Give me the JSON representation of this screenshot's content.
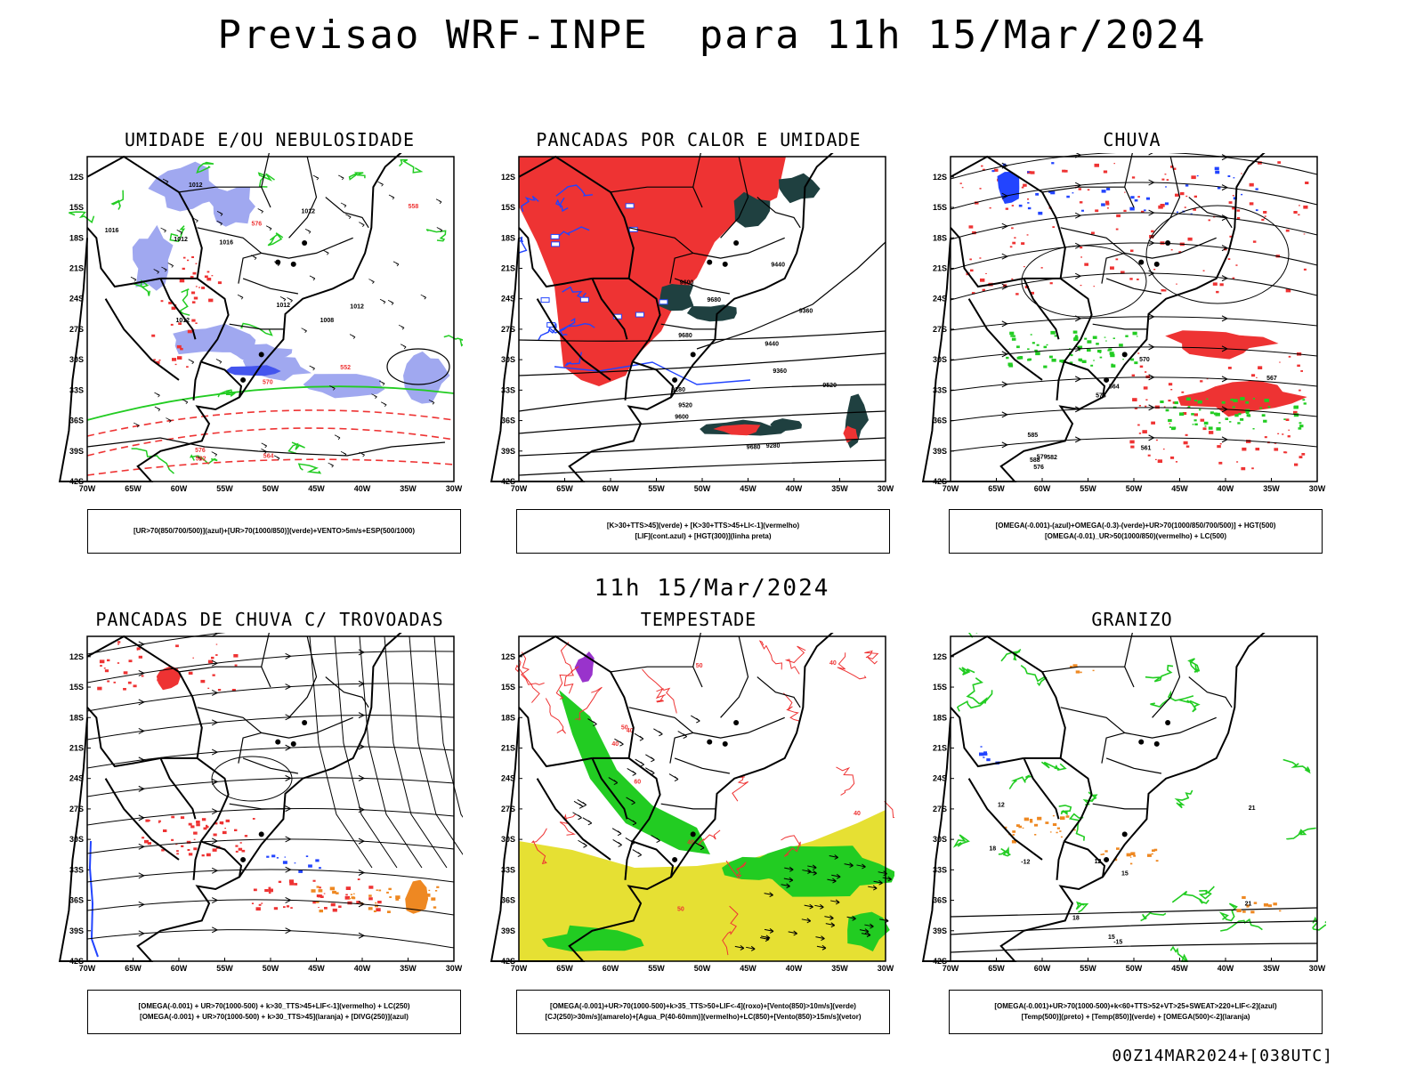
{
  "header": {
    "title": "Previsao WRF-INPE  para 11h 15/Mar/2024"
  },
  "mid_title": "11h 15/Mar/2024",
  "footer": "00Z14MAR2024+[038UTC]",
  "axes": {
    "lat_labels": [
      "12S",
      "15S",
      "18S",
      "21S",
      "24S",
      "27S",
      "30S",
      "33S",
      "36S",
      "39S",
      "42S"
    ],
    "lon_labels": [
      "70W",
      "65W",
      "60W",
      "55W",
      "50W",
      "45W",
      "40W",
      "35W",
      "30W"
    ]
  },
  "colors": {
    "humidity_blue": "#a0a8f0",
    "green": "#22cc22",
    "red": "#ee3333",
    "dark_teal": "#1f4040",
    "blue": "#2244ff",
    "orange": "#ee8822",
    "yellow": "#e6e033",
    "purple": "#9933cc",
    "black": "#000000"
  },
  "panels": [
    {
      "title": "UMIDADE E/OU NEBULOSIDADE",
      "legend": [
        "[UR>70(850/700/500)](azul)+[UR>70(1000/850)](verde)+VENTO>5m/s+ESP(500/1000)"
      ],
      "contour_labels": [
        "1012",
        "1012",
        "1012",
        "1012",
        "1008",
        "1012",
        "1016",
        "1012",
        "1016",
        "576",
        "576",
        "570",
        "582",
        "564",
        "558",
        "552"
      ]
    },
    {
      "title": "PANCADAS POR CALOR E UMIDADE",
      "legend": [
        "[K>30+TTS>45](verde) + [K>30+TTS>45+LI<-1](vermelho)",
        "[LIF](cont.azul) + [HGT(300)](linha preta)"
      ],
      "contour_labels": [
        "9680",
        "9680",
        "9680",
        "9600",
        "9600",
        "9520",
        "9520",
        "9440",
        "9440",
        "9360",
        "9360",
        "9280",
        "9280"
      ]
    },
    {
      "title": "CHUVA",
      "legend": [
        "[OMEGA(-0.001)-(azul)+OMEGA(-0.3)-(verde)+UR>70(1000/850/700/500)] + HGT(500)",
        "[OMEGA(-0.01)_UR>50(1000/850)(vermelho) + LC(500)"
      ],
      "contour_labels": [
        "588",
        "585",
        "582",
        "579",
        "576",
        "573",
        "570",
        "567",
        "564",
        "561"
      ]
    },
    {
      "title": "PANCADAS DE CHUVA C/ TROVOADAS",
      "legend": [
        "[OMEGA(-0.001) + UR>70(1000-500) + k>30_TTS>45+LIF<-1](vermelho) + LC(250)",
        "[OMEGA(-0.001) + UR>70(1000-500) + k>30_TTS>45](laranja) + [DIVG(250)](azul)"
      ],
      "contour_labels": []
    },
    {
      "title": "TEMPESTADE",
      "legend": [
        "[OMEGA(-0.001)+UR>70(1000-500)+k>35_TTS>50+LIF<-4](roxo)+[Vento(850)>10m/s](verde)",
        "[CJ(250)>30m/s](amarelo)+[Agua_P(40-60mm)](vermelho)+LC(850)+[Vento(850)>15m/s](vetor)"
      ],
      "contour_labels": [
        "60",
        "50",
        "40",
        "40",
        "50",
        "40",
        "40",
        "50",
        "40"
      ]
    },
    {
      "title": "GRANIZO",
      "legend": [
        "[OMEGA(-0.001)+UR>70(1000-500)+k<60+TTS>52+VT>25+SWEAT>220+LIF<-2](azul)",
        "[Temp(500)](preto) + [Temp(850)](verde) + [OMEGA(500)<-2](laranja)"
      ],
      "contour_labels": [
        "21",
        "21",
        "18",
        "18",
        "15",
        "15",
        "12",
        "12",
        "-12",
        "-15"
      ]
    }
  ]
}
